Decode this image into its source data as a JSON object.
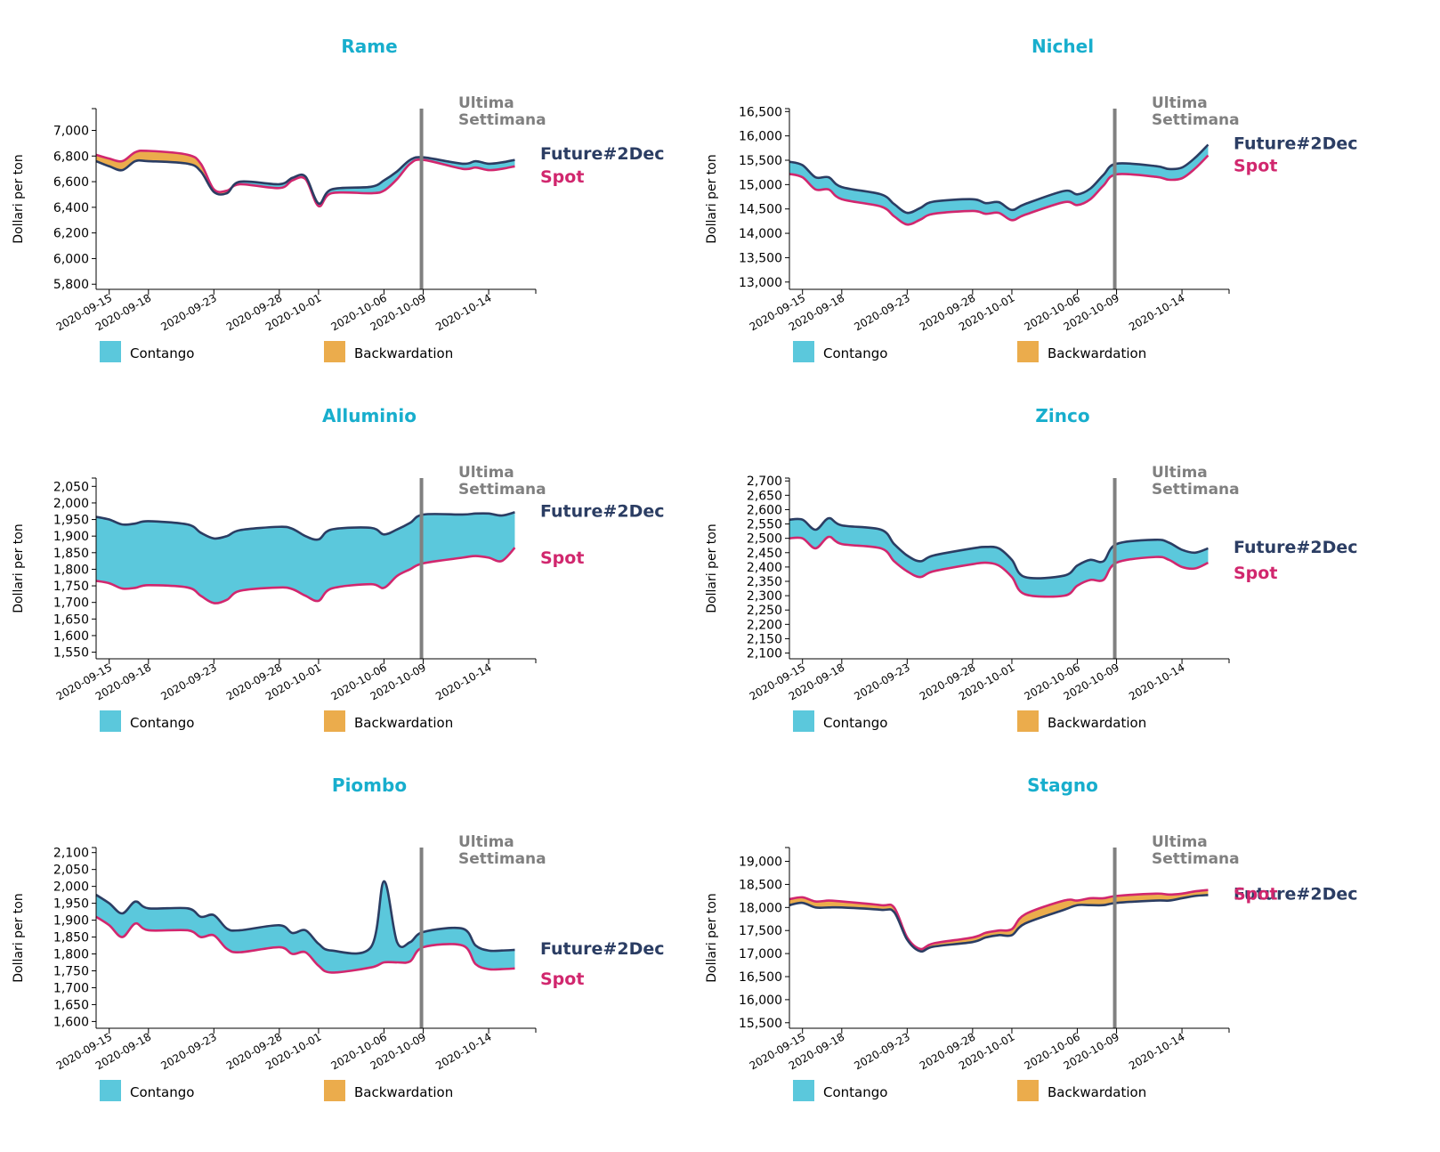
{
  "chart_data": [
    {
      "type": "area",
      "title": "Rame",
      "ylabel": "Dollari per ton",
      "yticks": [
        5800,
        6000,
        6200,
        6400,
        6600,
        6800,
        7000
      ],
      "ylim": [
        5760,
        7170
      ],
      "xticks": [
        "2020-09-15",
        "2020-09-18",
        "2020-09-23",
        "2020-09-28",
        "2020-10-01",
        "2020-10-06",
        "2020-10-09",
        "2020-10-14"
      ],
      "x": [
        "2020-09-14",
        "2020-09-15",
        "2020-09-16",
        "2020-09-17",
        "2020-09-18",
        "2020-09-21",
        "2020-09-22",
        "2020-09-23",
        "2020-09-24",
        "2020-09-25",
        "2020-09-28",
        "2020-09-29",
        "2020-09-30",
        "2020-10-01",
        "2020-10-02",
        "2020-10-05",
        "2020-10-06",
        "2020-10-07",
        "2020-10-08",
        "2020-10-09",
        "2020-10-12",
        "2020-10-13",
        "2020-10-14",
        "2020-10-15",
        "2020-10-16"
      ],
      "series": [
        {
          "name": "Future#2Dec",
          "values": [
            6760,
            6720,
            6690,
            6760,
            6760,
            6740,
            6680,
            6520,
            6510,
            6600,
            6580,
            6630,
            6640,
            6430,
            6540,
            6560,
            6610,
            6680,
            6770,
            6790,
            6740,
            6760,
            6740,
            6750,
            6770
          ]
        },
        {
          "name": "Spot",
          "values": [
            6810,
            6780,
            6760,
            6830,
            6840,
            6810,
            6740,
            6540,
            6530,
            6580,
            6550,
            6610,
            6620,
            6410,
            6510,
            6510,
            6530,
            6620,
            6740,
            6770,
            6700,
            6710,
            6690,
            6700,
            6720
          ]
        }
      ],
      "legend": [
        "Contango",
        "Backwardation"
      ],
      "annotation": "Ultima Settimana",
      "annotation_date": "2020-10-09",
      "end_labels": {
        "future": "Future#2Dec",
        "spot": "Spot"
      }
    },
    {
      "type": "area",
      "title": "Nichel",
      "ylabel": "Dollari per ton",
      "yticks": [
        13000,
        13500,
        14000,
        14500,
        15000,
        15500,
        16000,
        16500
      ],
      "ylim": [
        12850,
        16560
      ],
      "xticks": [
        "2020-09-15",
        "2020-09-18",
        "2020-09-23",
        "2020-09-28",
        "2020-10-01",
        "2020-10-06",
        "2020-10-09",
        "2020-10-14"
      ],
      "x": [
        "2020-09-14",
        "2020-09-15",
        "2020-09-16",
        "2020-09-17",
        "2020-09-18",
        "2020-09-21",
        "2020-09-22",
        "2020-09-23",
        "2020-09-24",
        "2020-09-25",
        "2020-09-28",
        "2020-09-29",
        "2020-09-30",
        "2020-10-01",
        "2020-10-02",
        "2020-10-05",
        "2020-10-06",
        "2020-10-07",
        "2020-10-08",
        "2020-10-09",
        "2020-10-12",
        "2020-10-13",
        "2020-10-14",
        "2020-10-15",
        "2020-10-16"
      ],
      "series": [
        {
          "name": "Future#2Dec",
          "values": [
            15470,
            15400,
            15150,
            15150,
            14950,
            14800,
            14600,
            14420,
            14520,
            14650,
            14700,
            14620,
            14640,
            14480,
            14600,
            14870,
            14800,
            14920,
            15200,
            15430,
            15380,
            15320,
            15350,
            15550,
            15820
          ]
        },
        {
          "name": "Spot",
          "values": [
            15220,
            15150,
            14900,
            14900,
            14700,
            14550,
            14350,
            14180,
            14280,
            14400,
            14460,
            14400,
            14420,
            14270,
            14380,
            14640,
            14580,
            14700,
            14980,
            15210,
            15160,
            15100,
            15130,
            15330,
            15600
          ]
        }
      ],
      "legend": [
        "Contango",
        "Backwardation"
      ],
      "annotation": "Ultima Settimana",
      "annotation_date": "2020-10-09",
      "end_labels": {
        "future": "Future#2Dec",
        "spot": "Spot"
      }
    },
    {
      "type": "area",
      "title": "Alluminio",
      "ylabel": "Dollari per ton",
      "yticks": [
        1550,
        1600,
        1650,
        1700,
        1750,
        1800,
        1850,
        1900,
        1950,
        2000,
        2050
      ],
      "ylim": [
        1530,
        2075
      ],
      "xticks": [
        "2020-09-15",
        "2020-09-18",
        "2020-09-23",
        "2020-09-28",
        "2020-10-01",
        "2020-10-06",
        "2020-10-09",
        "2020-10-14"
      ],
      "x": [
        "2020-09-14",
        "2020-09-15",
        "2020-09-16",
        "2020-09-17",
        "2020-09-18",
        "2020-09-21",
        "2020-09-22",
        "2020-09-23",
        "2020-09-24",
        "2020-09-25",
        "2020-09-28",
        "2020-09-29",
        "2020-09-30",
        "2020-10-01",
        "2020-10-02",
        "2020-10-05",
        "2020-10-06",
        "2020-10-07",
        "2020-10-08",
        "2020-10-09",
        "2020-10-12",
        "2020-10-13",
        "2020-10-14",
        "2020-10-15",
        "2020-10-16"
      ],
      "series": [
        {
          "name": "Future#2Dec",
          "values": [
            1958,
            1950,
            1935,
            1938,
            1945,
            1935,
            1910,
            1893,
            1900,
            1918,
            1928,
            1922,
            1900,
            1890,
            1920,
            1925,
            1905,
            1920,
            1940,
            1965,
            1965,
            1968,
            1968,
            1962,
            1972
          ]
        },
        {
          "name": "Spot",
          "values": [
            1765,
            1758,
            1742,
            1744,
            1752,
            1745,
            1720,
            1698,
            1708,
            1735,
            1745,
            1740,
            1720,
            1705,
            1742,
            1755,
            1744,
            1780,
            1800,
            1818,
            1835,
            1840,
            1835,
            1825,
            1865
          ]
        }
      ],
      "legend": [
        "Contango",
        "Backwardation"
      ],
      "annotation": "Ultima Settimana",
      "annotation_date": "2020-10-09",
      "end_labels": {
        "future": "Future#2Dec",
        "spot": "Spot"
      }
    },
    {
      "type": "area",
      "title": "Zinco",
      "ylabel": "Dollari per ton",
      "yticks": [
        2100,
        2150,
        2200,
        2250,
        2300,
        2350,
        2400,
        2450,
        2500,
        2550,
        2600,
        2650,
        2700
      ],
      "ylim": [
        2080,
        2710
      ],
      "xticks": [
        "2020-09-15",
        "2020-09-18",
        "2020-09-23",
        "2020-09-28",
        "2020-10-01",
        "2020-10-06",
        "2020-10-09",
        "2020-10-14"
      ],
      "x": [
        "2020-09-14",
        "2020-09-15",
        "2020-09-16",
        "2020-09-17",
        "2020-09-18",
        "2020-09-21",
        "2020-09-22",
        "2020-09-23",
        "2020-09-24",
        "2020-09-25",
        "2020-09-28",
        "2020-09-29",
        "2020-09-30",
        "2020-10-01",
        "2020-10-02",
        "2020-10-05",
        "2020-10-06",
        "2020-10-07",
        "2020-10-08",
        "2020-10-09",
        "2020-10-12",
        "2020-10-13",
        "2020-10-14",
        "2020-10-15",
        "2020-10-16"
      ],
      "series": [
        {
          "name": "Future#2Dec",
          "values": [
            2565,
            2565,
            2530,
            2570,
            2545,
            2530,
            2480,
            2440,
            2420,
            2440,
            2465,
            2470,
            2465,
            2425,
            2365,
            2370,
            2405,
            2425,
            2420,
            2480,
            2495,
            2485,
            2460,
            2450,
            2465
          ]
        },
        {
          "name": "Spot",
          "values": [
            2500,
            2500,
            2465,
            2505,
            2480,
            2465,
            2420,
            2385,
            2365,
            2385,
            2410,
            2415,
            2405,
            2365,
            2305,
            2300,
            2335,
            2355,
            2355,
            2415,
            2435,
            2425,
            2400,
            2395,
            2415
          ]
        }
      ],
      "legend": [
        "Contango",
        "Backwardation"
      ],
      "annotation": "Ultima Settimana",
      "annotation_date": "2020-10-09",
      "end_labels": {
        "future": "Future#2Dec",
        "spot": "Spot"
      }
    },
    {
      "type": "area",
      "title": "Piombo",
      "ylabel": "Dollari per ton",
      "yticks": [
        1600,
        1650,
        1700,
        1750,
        1800,
        1850,
        1900,
        1950,
        2000,
        2050,
        2100
      ],
      "ylim": [
        1580,
        2115
      ],
      "xticks": [
        "2020-09-15",
        "2020-09-18",
        "2020-09-23",
        "2020-09-28",
        "2020-10-01",
        "2020-10-06",
        "2020-10-09",
        "2020-10-14"
      ],
      "x": [
        "2020-09-14",
        "2020-09-15",
        "2020-09-16",
        "2020-09-17",
        "2020-09-18",
        "2020-09-21",
        "2020-09-22",
        "2020-09-23",
        "2020-09-24",
        "2020-09-25",
        "2020-09-28",
        "2020-09-29",
        "2020-09-30",
        "2020-10-01",
        "2020-10-02",
        "2020-10-05",
        "2020-10-06",
        "2020-10-07",
        "2020-10-08",
        "2020-10-09",
        "2020-10-12",
        "2020-10-13",
        "2020-10-14",
        "2020-10-15",
        "2020-10-16"
      ],
      "series": [
        {
          "name": "Future#2Dec",
          "values": [
            1975,
            1950,
            1920,
            1955,
            1935,
            1935,
            1910,
            1915,
            1875,
            1870,
            1885,
            1862,
            1870,
            1830,
            1810,
            1820,
            2015,
            1835,
            1835,
            1865,
            1875,
            1825,
            1810,
            1810,
            1812
          ]
        },
        {
          "name": "Spot",
          "values": [
            1910,
            1885,
            1850,
            1890,
            1870,
            1870,
            1850,
            1855,
            1815,
            1805,
            1820,
            1800,
            1805,
            1765,
            1745,
            1760,
            1775,
            1775,
            1778,
            1820,
            1825,
            1770,
            1755,
            1755,
            1757
          ]
        }
      ],
      "legend": [
        "Contango",
        "Backwardation"
      ],
      "annotation": "Ultima Settimana",
      "annotation_date": "2020-10-09",
      "end_labels": {
        "future": "Future#2Dec",
        "spot": "Spot"
      }
    },
    {
      "type": "area",
      "title": "Stagno",
      "ylabel": "Dollari per ton",
      "yticks": [
        15500,
        16000,
        16500,
        17000,
        17500,
        18000,
        18500,
        19000
      ],
      "ylim": [
        15380,
        19300
      ],
      "xticks": [
        "2020-09-15",
        "2020-09-18",
        "2020-09-23",
        "2020-09-28",
        "2020-10-01",
        "2020-10-06",
        "2020-10-09",
        "2020-10-14"
      ],
      "x": [
        "2020-09-14",
        "2020-09-15",
        "2020-09-16",
        "2020-09-17",
        "2020-09-18",
        "2020-09-21",
        "2020-09-22",
        "2020-09-23",
        "2020-09-24",
        "2020-09-25",
        "2020-09-28",
        "2020-09-29",
        "2020-09-30",
        "2020-10-01",
        "2020-10-02",
        "2020-10-05",
        "2020-10-06",
        "2020-10-07",
        "2020-10-08",
        "2020-10-09",
        "2020-10-12",
        "2020-10-13",
        "2020-10-14",
        "2020-10-15",
        "2020-10-16"
      ],
      "series": [
        {
          "name": "Future#2Dec",
          "values": [
            18050,
            18100,
            18000,
            18000,
            18000,
            17950,
            17900,
            17300,
            17050,
            17150,
            17250,
            17350,
            17400,
            17400,
            17650,
            17950,
            18050,
            18050,
            18050,
            18100,
            18150,
            18150,
            18200,
            18250,
            18270
          ]
        },
        {
          "name": "Spot",
          "values": [
            18180,
            18220,
            18130,
            18150,
            18130,
            18050,
            18000,
            17350,
            17100,
            17220,
            17350,
            17450,
            17500,
            17530,
            17850,
            18150,
            18150,
            18200,
            18200,
            18250,
            18300,
            18280,
            18300,
            18350,
            18380
          ]
        }
      ],
      "legend": [
        "Contango",
        "Backwardation"
      ],
      "annotation": "Ultima Settimana",
      "annotation_date": "2020-10-09",
      "end_labels": {
        "future": "Future#2Dec",
        "spot": "Spot"
      }
    }
  ],
  "colors": {
    "title": "#18aecd",
    "contango": "#5bc8dc",
    "backwardation": "#ebac4c",
    "future": "#2b3d63",
    "spot": "#d1276e",
    "annotation": "#808080"
  }
}
